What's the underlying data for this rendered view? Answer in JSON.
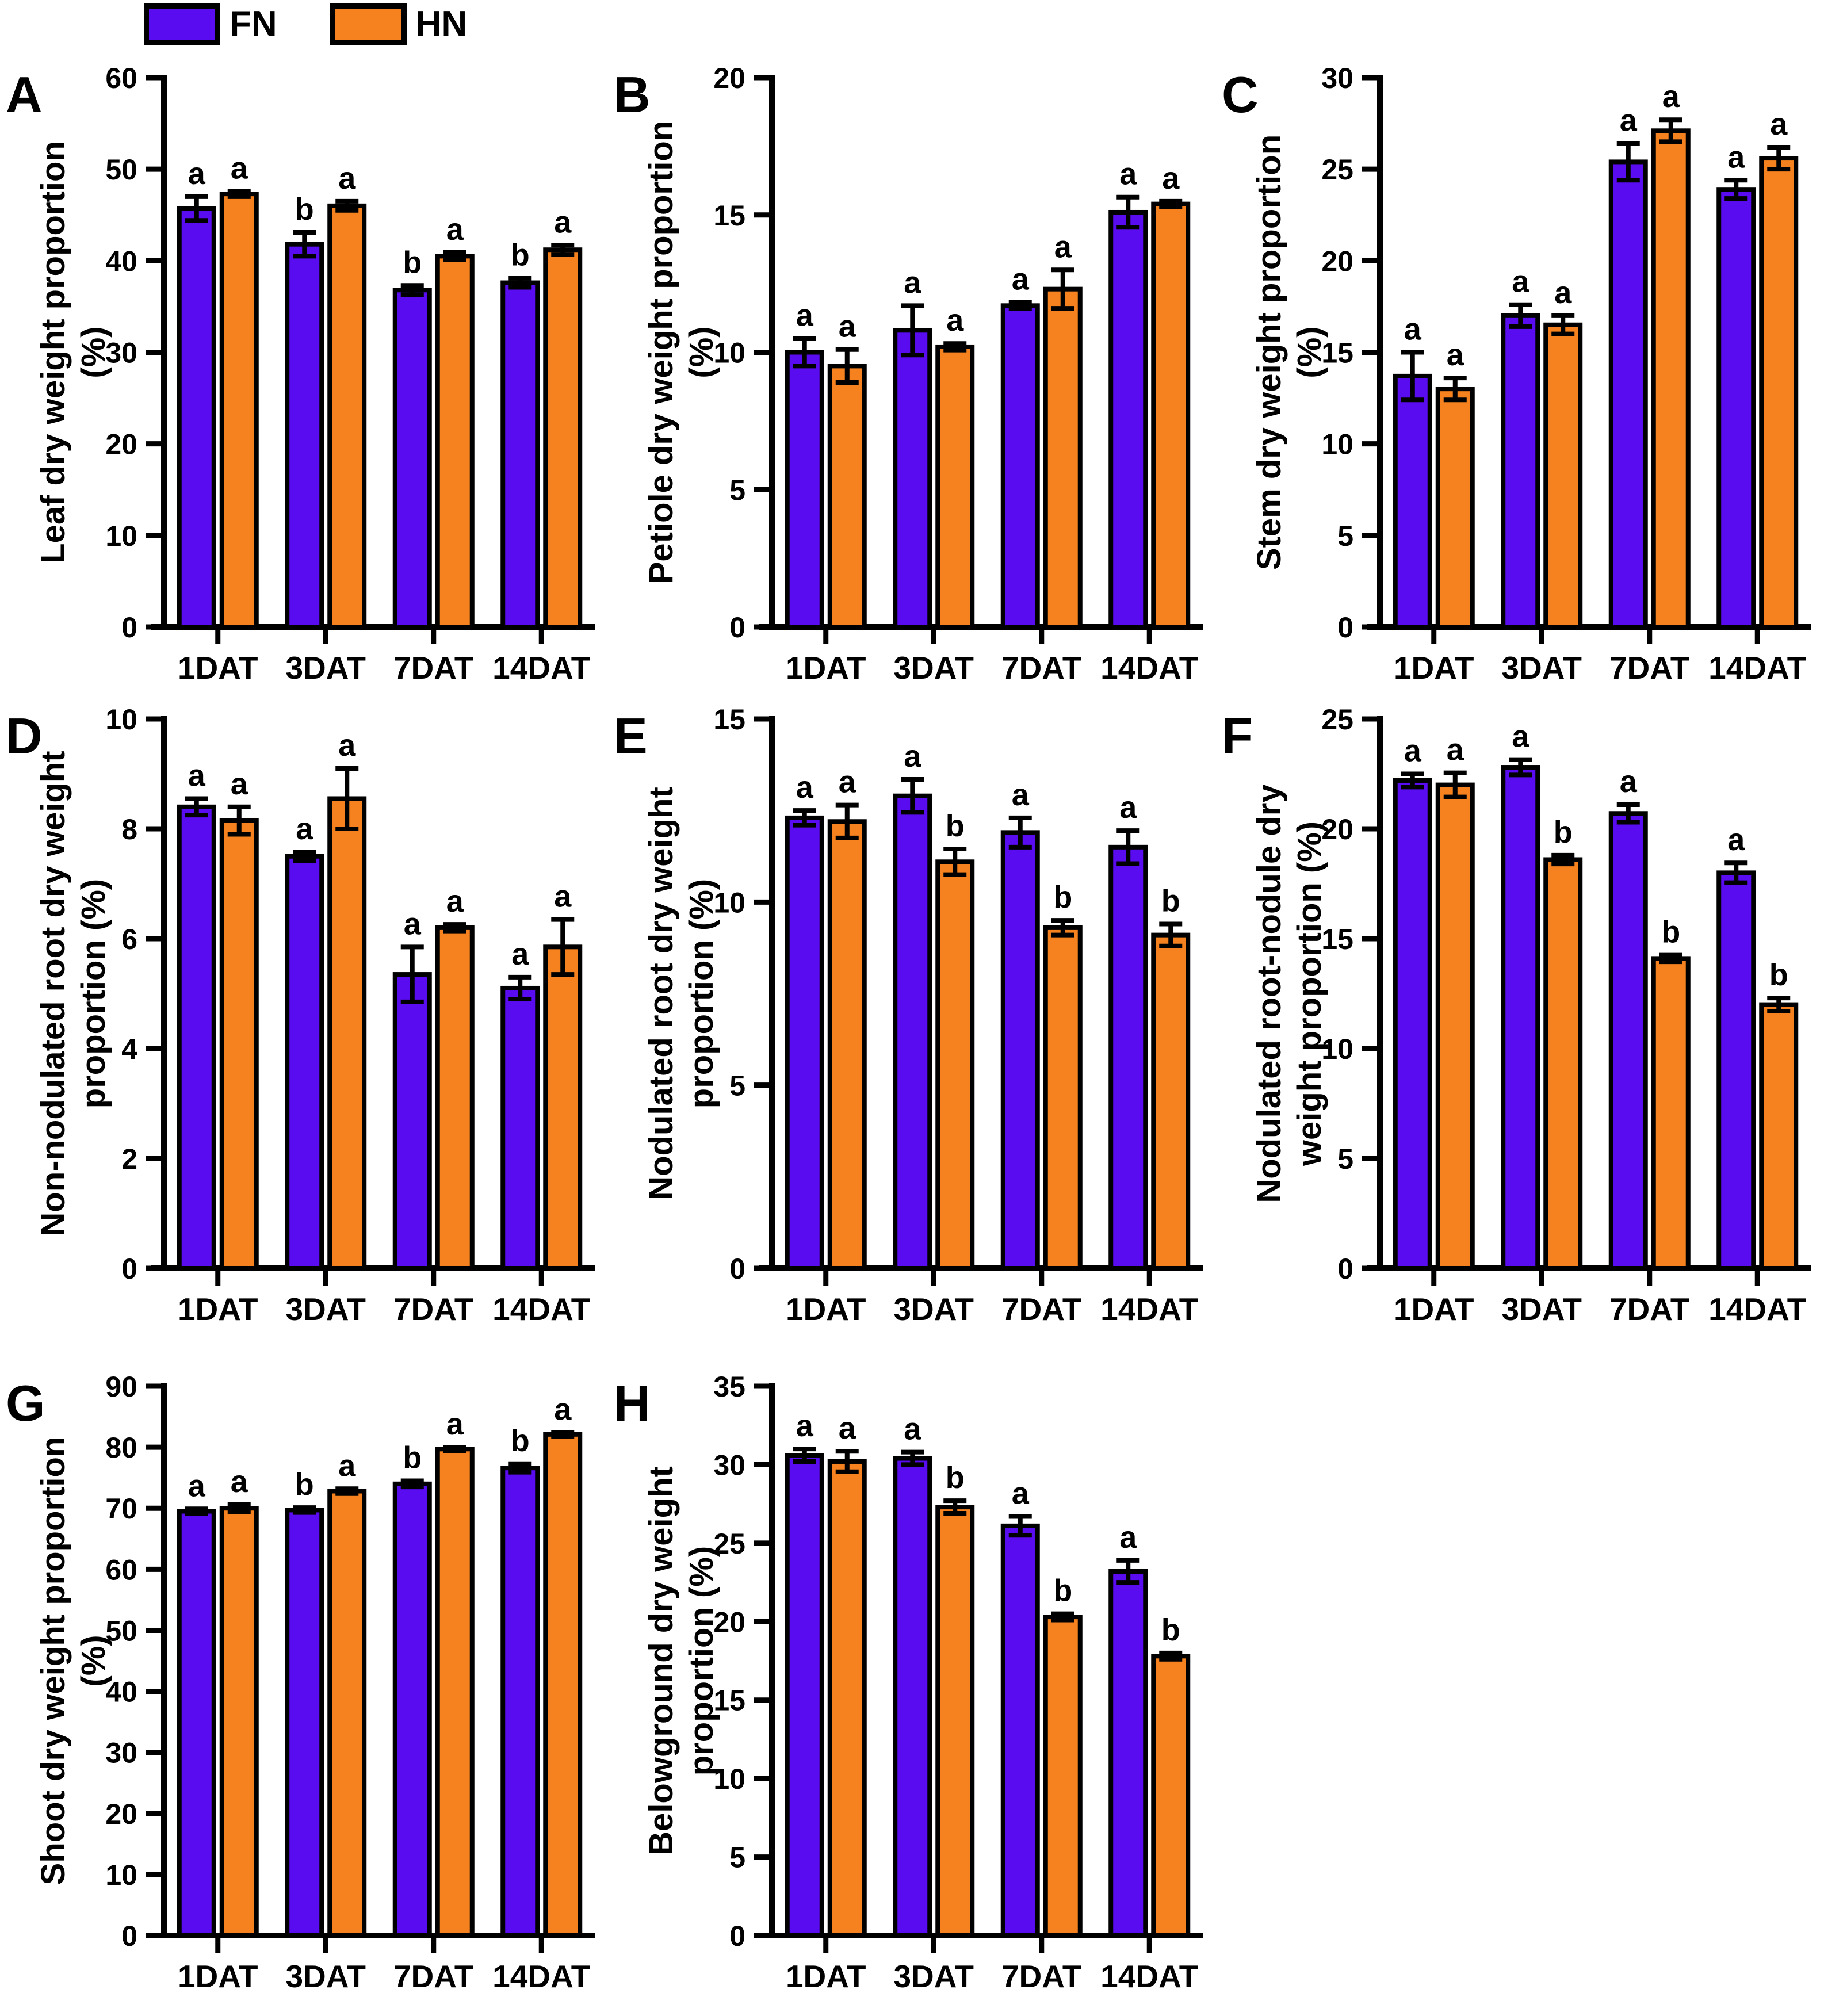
{
  "legend": {
    "items": [
      {
        "label": "FN",
        "color": "#5a0cf0"
      },
      {
        "label": "HN",
        "color": "#f5821f"
      }
    ]
  },
  "colors": {
    "fn_bar": "#5a0cf0",
    "hn_bar": "#f5821f",
    "axis": "#000000"
  },
  "chart_data": [
    {
      "id": "A",
      "type": "bar",
      "ylabel_lines": [
        "Leaf dry weight proportion",
        "(%)"
      ],
      "ylim": [
        0,
        60
      ],
      "ytick_step": 10,
      "categories": [
        "1DAT",
        "3DAT",
        "7DAT",
        "14DAT"
      ],
      "series": [
        {
          "name": "FN",
          "values": [
            45.7,
            41.8,
            36.8,
            37.6
          ],
          "errors": [
            1.3,
            1.3,
            0.5,
            0.5
          ],
          "sig_letters": [
            "a",
            "b",
            "b",
            "b"
          ]
        },
        {
          "name": "HN",
          "values": [
            47.3,
            46.0,
            40.5,
            41.2
          ],
          "errors": [
            0.3,
            0.5,
            0.4,
            0.5
          ],
          "sig_letters": [
            "a",
            "a",
            "a",
            "a"
          ]
        }
      ]
    },
    {
      "id": "B",
      "type": "bar",
      "ylabel_lines": [
        "Petiole dry weight proportion",
        "(%)"
      ],
      "ylim": [
        0,
        20
      ],
      "ytick_step": 5,
      "categories": [
        "1DAT",
        "3DAT",
        "7DAT",
        "14DAT"
      ],
      "series": [
        {
          "name": "FN",
          "values": [
            10.0,
            10.8,
            11.7,
            15.1
          ],
          "errors": [
            0.5,
            0.9,
            0.12,
            0.55
          ],
          "sig_letters": [
            "a",
            "a",
            "a",
            "a"
          ]
        },
        {
          "name": "HN",
          "values": [
            9.5,
            10.2,
            12.3,
            15.4
          ],
          "errors": [
            0.6,
            0.12,
            0.7,
            0.1
          ],
          "sig_letters": [
            "a",
            "a",
            "a",
            "a"
          ]
        }
      ]
    },
    {
      "id": "C",
      "type": "bar",
      "ylabel_lines": [
        "Stem dry weight proportion",
        "(%)"
      ],
      "ylim": [
        0,
        30
      ],
      "ytick_step": 5,
      "categories": [
        "1DAT",
        "3DAT",
        "7DAT",
        "14DAT"
      ],
      "series": [
        {
          "name": "FN",
          "values": [
            13.7,
            17.0,
            25.4,
            23.9
          ],
          "errors": [
            1.3,
            0.6,
            1.0,
            0.5
          ],
          "sig_letters": [
            "a",
            "a",
            "a",
            "a"
          ]
        },
        {
          "name": "HN",
          "values": [
            13.0,
            16.5,
            27.1,
            25.6
          ],
          "errors": [
            0.6,
            0.5,
            0.6,
            0.6
          ],
          "sig_letters": [
            "a",
            "a",
            "a",
            "a"
          ]
        }
      ]
    },
    {
      "id": "D",
      "type": "bar",
      "ylabel_lines": [
        "Non-nodulated root dry weight",
        "proportion (%)"
      ],
      "ylim": [
        0,
        10
      ],
      "ytick_step": 2,
      "categories": [
        "1DAT",
        "3DAT",
        "7DAT",
        "14DAT"
      ],
      "series": [
        {
          "name": "FN",
          "values": [
            8.4,
            7.5,
            5.35,
            5.1
          ],
          "errors": [
            0.15,
            0.08,
            0.5,
            0.2
          ],
          "sig_letters": [
            "a",
            "a",
            "a",
            "a"
          ]
        },
        {
          "name": "HN",
          "values": [
            8.15,
            8.55,
            6.2,
            5.85
          ],
          "errors": [
            0.25,
            0.55,
            0.06,
            0.5
          ],
          "sig_letters": [
            "a",
            "a",
            "a",
            "a"
          ]
        }
      ]
    },
    {
      "id": "E",
      "type": "bar",
      "ylabel_lines": [
        "Nodulated root dry weight",
        "proportion (%)"
      ],
      "ylim": [
        0,
        15
      ],
      "ytick_step": 5,
      "categories": [
        "1DAT",
        "3DAT",
        "7DAT",
        "14DAT"
      ],
      "series": [
        {
          "name": "FN",
          "values": [
            12.3,
            12.9,
            11.9,
            11.5
          ],
          "errors": [
            0.2,
            0.45,
            0.4,
            0.45
          ],
          "sig_letters": [
            "a",
            "a",
            "a",
            "a"
          ]
        },
        {
          "name": "HN",
          "values": [
            12.2,
            11.1,
            9.3,
            9.1
          ],
          "errors": [
            0.45,
            0.35,
            0.2,
            0.3
          ],
          "sig_letters": [
            "a",
            "b",
            "b",
            "b"
          ]
        }
      ]
    },
    {
      "id": "F",
      "type": "bar",
      "ylabel_lines": [
        "Nodulated root-nodule dry",
        "weight proportion (%)"
      ],
      "ylim": [
        0,
        25
      ],
      "ytick_step": 5,
      "categories": [
        "1DAT",
        "3DAT",
        "7DAT",
        "14DAT"
      ],
      "series": [
        {
          "name": "FN",
          "values": [
            22.2,
            22.8,
            20.7,
            18.0
          ],
          "errors": [
            0.3,
            0.35,
            0.4,
            0.45
          ],
          "sig_letters": [
            "a",
            "a",
            "a",
            "a"
          ]
        },
        {
          "name": "HN",
          "values": [
            22.0,
            18.6,
            14.1,
            12.0
          ],
          "errors": [
            0.55,
            0.2,
            0.15,
            0.3
          ],
          "sig_letters": [
            "a",
            "b",
            "b",
            "b"
          ]
        }
      ]
    },
    {
      "id": "G",
      "type": "bar",
      "ylabel_lines": [
        "Shoot dry weight proportion",
        "(%)"
      ],
      "ylim": [
        0,
        90
      ],
      "ytick_step": 10,
      "categories": [
        "1DAT",
        "3DAT",
        "7DAT",
        "14DAT"
      ],
      "series": [
        {
          "name": "FN",
          "values": [
            69.5,
            69.7,
            74.0,
            76.6
          ],
          "errors": [
            0.4,
            0.4,
            0.5,
            0.7
          ],
          "sig_letters": [
            "a",
            "b",
            "b",
            "b"
          ]
        },
        {
          "name": "HN",
          "values": [
            70.0,
            72.8,
            79.7,
            82.1
          ],
          "errors": [
            0.6,
            0.4,
            0.3,
            0.3
          ],
          "sig_letters": [
            "a",
            "a",
            "a",
            "a"
          ]
        }
      ]
    },
    {
      "id": "H",
      "type": "bar",
      "ylabel_lines": [
        "Belowground dry weight",
        "proportion (%)"
      ],
      "ylim": [
        0,
        35
      ],
      "ytick_step": 5,
      "categories": [
        "1DAT",
        "3DAT",
        "7DAT",
        "14DAT"
      ],
      "series": [
        {
          "name": "FN",
          "values": [
            30.6,
            30.4,
            26.1,
            23.2
          ],
          "errors": [
            0.4,
            0.4,
            0.6,
            0.7
          ],
          "sig_letters": [
            "a",
            "a",
            "a",
            "a"
          ]
        },
        {
          "name": "HN",
          "values": [
            30.2,
            27.3,
            20.3,
            17.8
          ],
          "errors": [
            0.65,
            0.4,
            0.2,
            0.2
          ],
          "sig_letters": [
            "a",
            "b",
            "b",
            "b"
          ]
        }
      ]
    }
  ]
}
